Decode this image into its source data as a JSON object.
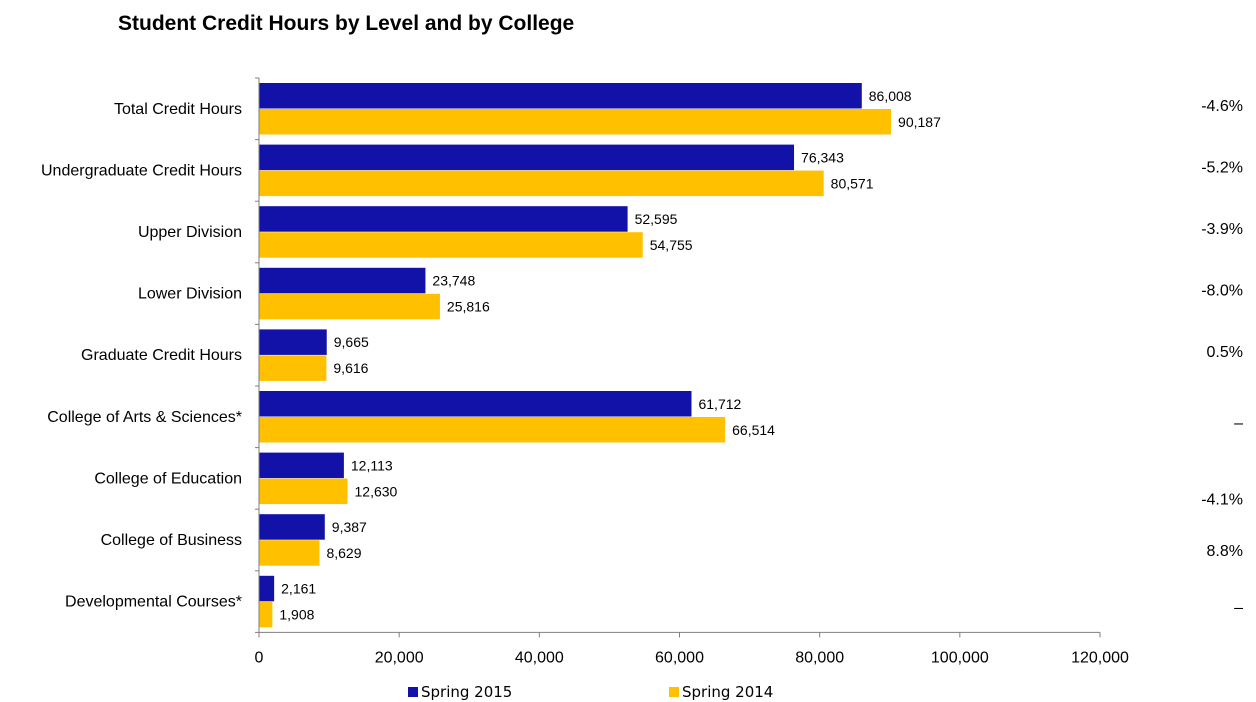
{
  "colors": {
    "spring2015": "#1212A8",
    "spring2014": "#FFC000",
    "axis": "#7f7f7f"
  },
  "chart_data": {
    "type": "bar",
    "orientation": "horizontal",
    "title": "Student Credit Hours by Level and by College",
    "categories": [
      "Total Credit Hours",
      "Undergraduate Credit Hours",
      "Upper Division",
      "Lower Division",
      "Graduate Credit Hours",
      "College of Arts & Sciences*",
      "College of Education",
      "College of Business",
      "Developmental Courses*"
    ],
    "series": [
      {
        "name": "Spring 2015",
        "values": [
          86008,
          76343,
          52595,
          23748,
          9665,
          61712,
          12113,
          9387,
          2161
        ],
        "labels": [
          "86,008",
          "76,343",
          "52,595",
          "23,748",
          "9,665",
          "61,712",
          "12,113",
          "9,387",
          "2,161"
        ]
      },
      {
        "name": "Spring 2014",
        "values": [
          90187,
          80571,
          54755,
          25816,
          9616,
          66514,
          12630,
          8629,
          1908
        ],
        "labels": [
          "90,187",
          "80,571",
          "54,755",
          "25,816",
          "9,616",
          "66,514",
          "12,630",
          "8,629",
          "1,908"
        ]
      }
    ],
    "percent_change": [
      "-4.6%",
      "-5.2%",
      "-3.9%",
      "-8.0%",
      "0.5%",
      "–",
      "-4.1%",
      "8.8%",
      "–"
    ],
    "xlim": [
      0,
      120000
    ],
    "x_ticks": [
      0,
      20000,
      40000,
      60000,
      80000,
      100000,
      120000
    ],
    "x_tick_labels": [
      "0",
      "20,000",
      "40,000",
      "60,000",
      "80,000",
      "100,000",
      "120,000"
    ],
    "legend_position": "bottom",
    "grid": false
  }
}
